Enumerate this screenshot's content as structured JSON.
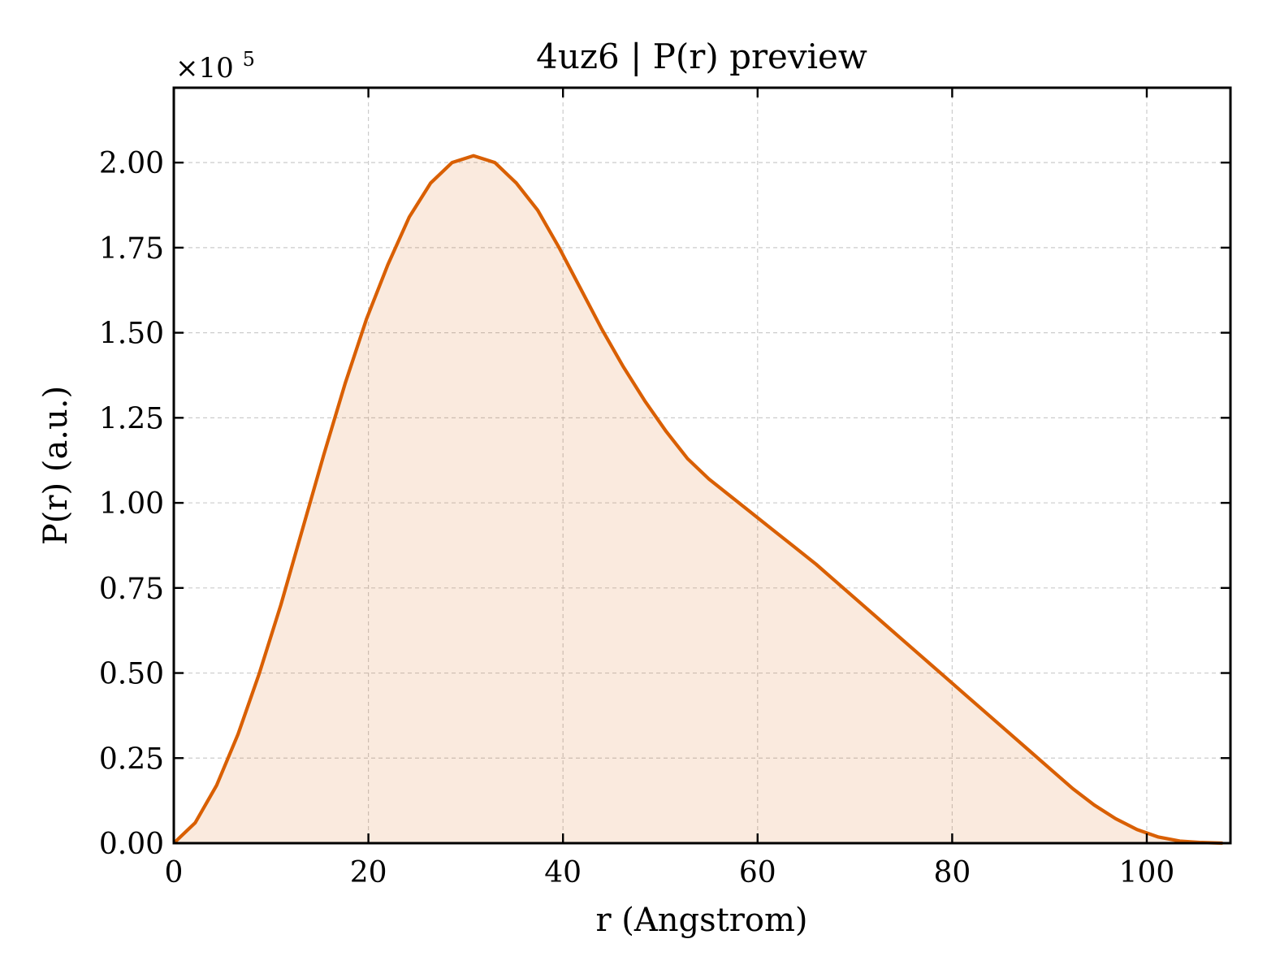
{
  "chart_data": {
    "type": "area",
    "title": "4uz6 | P(r) preview",
    "xlabel": "r (Angstrom)",
    "ylabel": "P(r) (a.u.)",
    "y_multiplier_label": "×10",
    "y_multiplier_exponent": "5",
    "xlim": [
      0,
      108.6
    ],
    "ylim": [
      0,
      2.22
    ],
    "y_scale_factor": 100000,
    "xticks": [
      0,
      20,
      40,
      60,
      80,
      100
    ],
    "xtick_labels": [
      "0",
      "20",
      "40",
      "60",
      "80",
      "100"
    ],
    "yticks": [
      0,
      0.25,
      0.5,
      0.75,
      1.0,
      1.25,
      1.5,
      1.75,
      2.0
    ],
    "ytick_labels": [
      "0.00",
      "0.25",
      "0.50",
      "0.75",
      "1.00",
      "1.25",
      "1.50",
      "1.75",
      "2.00"
    ],
    "grid": true,
    "line_color": "#d95f02",
    "fill_color": "#d95f02",
    "series": [
      {
        "x": [
          0,
          2.2,
          4.4,
          6.6,
          8.8,
          11.0,
          13.2,
          15.4,
          17.6,
          19.8,
          22.0,
          24.2,
          26.4,
          28.6,
          30.8,
          33.0,
          35.2,
          37.4,
          39.6,
          41.8,
          44.0,
          46.2,
          48.4,
          50.6,
          52.8,
          55.0,
          57.2,
          59.4,
          61.6,
          63.8,
          66.0,
          68.2,
          70.4,
          72.6,
          74.8,
          77.0,
          79.2,
          81.4,
          83.6,
          85.8,
          88.0,
          90.2,
          92.4,
          94.6,
          96.8,
          99.0,
          101.2,
          103.4,
          105.6,
          107.8
        ],
        "y": [
          0.0,
          0.06,
          0.17,
          0.32,
          0.5,
          0.7,
          0.92,
          1.14,
          1.35,
          1.54,
          1.7,
          1.84,
          1.94,
          2.0,
          2.02,
          2.0,
          1.94,
          1.86,
          1.75,
          1.63,
          1.51,
          1.4,
          1.3,
          1.21,
          1.13,
          1.07,
          1.02,
          0.97,
          0.92,
          0.87,
          0.82,
          0.765,
          0.71,
          0.655,
          0.6,
          0.545,
          0.49,
          0.435,
          0.38,
          0.325,
          0.27,
          0.215,
          0.16,
          0.112,
          0.072,
          0.04,
          0.018,
          0.006,
          0.002,
          0.0
        ]
      }
    ]
  }
}
